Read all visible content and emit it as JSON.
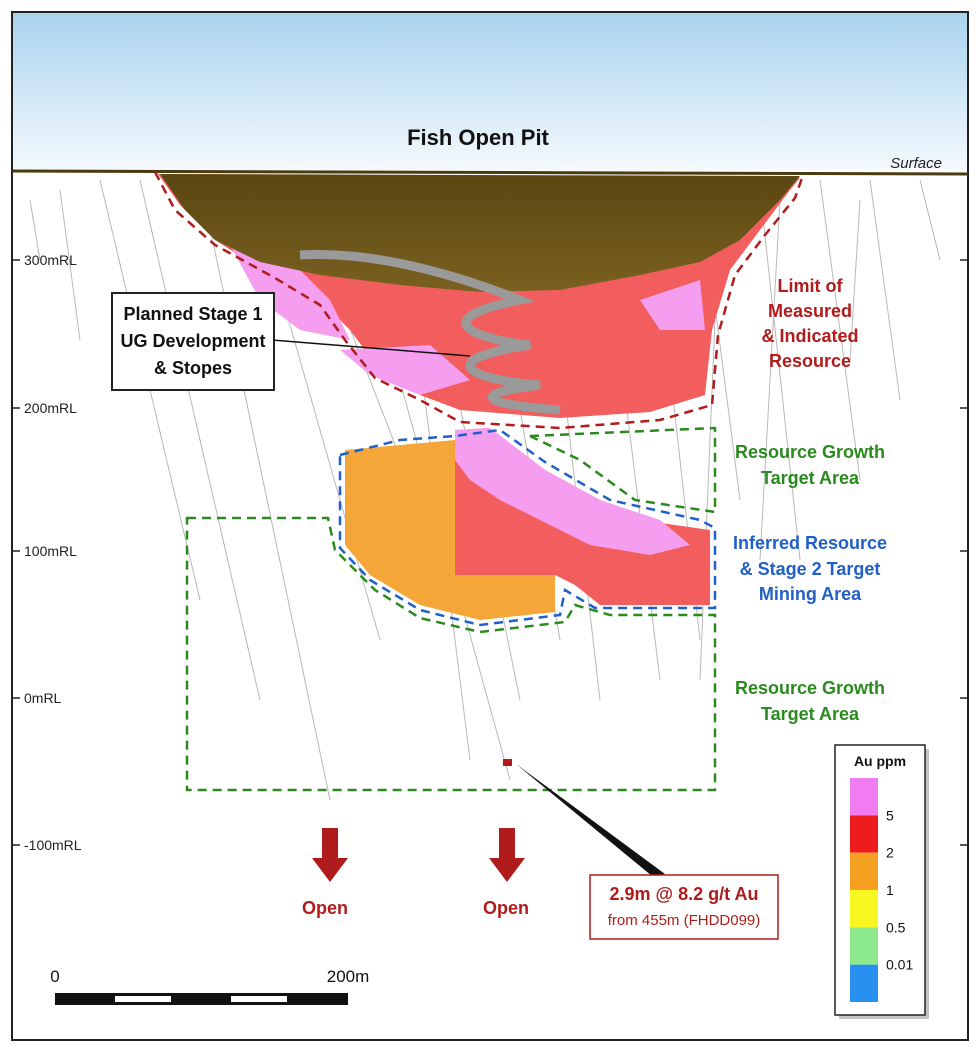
{
  "title": "Fish Open Pit",
  "surface_label": "Surface",
  "rl_labels": [
    "300mRL",
    "200mRL",
    "100mRL",
    "0mRL",
    "-100mRL"
  ],
  "callout_stage1": [
    "Planned Stage 1",
    "UG Development",
    "& Stopes"
  ],
  "limit_label": [
    "Limit of",
    "Measured",
    "& Indicated",
    "Resource"
  ],
  "growth_label_upper": [
    "Resource Growth",
    "Target Area"
  ],
  "inferred_label": [
    "Inferred Resource",
    "& Stage 2 Target",
    "Mining Area"
  ],
  "growth_label_lower": [
    "Resource Growth",
    "Target Area"
  ],
  "open_labels": [
    "Open",
    "Open"
  ],
  "intercept": {
    "headline": "2.9m @ 8.2 g/t Au",
    "detail": "from 455m (FHDD099)"
  },
  "legend": {
    "title": "Au ppm",
    "entries": [
      {
        "label": "5",
        "color": "#f07cf0"
      },
      {
        "label": "2",
        "color": "#ee1c1c"
      },
      {
        "label": "1",
        "color": "#f5a020"
      },
      {
        "label": "0.5",
        "color": "#f8f820"
      },
      {
        "label": "0.01",
        "color": "#8ee88e"
      }
    ],
    "bottom_color": "#2a90f0"
  },
  "scale_bar": {
    "start": "0",
    "end": "200m"
  }
}
